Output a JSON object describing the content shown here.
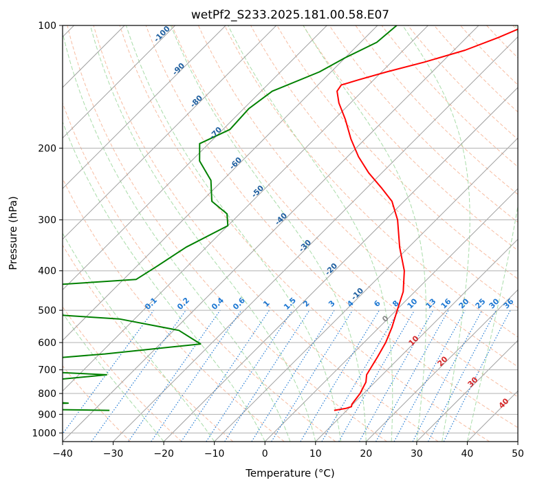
{
  "chart_data": {
    "type": "line",
    "subtype": "skew-T log-P sounding",
    "title": "wetPf2_S233.2025.181.00.58.E07",
    "xlabel": "Temperature (°C)",
    "ylabel": "Pressure (hPa)",
    "xlim": [
      -40,
      50
    ],
    "ylim": [
      1050,
      100
    ],
    "y_scale": "log",
    "x_ticks": [
      -40,
      -30,
      -20,
      -10,
      0,
      10,
      20,
      30,
      40,
      50
    ],
    "x_tick_labels": [
      "−40",
      "−30",
      "−20",
      "−10",
      "0",
      "10",
      "20",
      "30",
      "40",
      "50"
    ],
    "y_ticks": [
      100,
      200,
      300,
      400,
      500,
      600,
      700,
      800,
      900,
      1000
    ],
    "y_tick_labels": [
      "100",
      "200",
      "300",
      "400",
      "500",
      "600",
      "700",
      "800",
      "900",
      "1000"
    ],
    "grid": true,
    "colors": {
      "temperature": "#ff0000",
      "dewpoint": "#008000",
      "isotherm": "#a0a0a0",
      "dry_adiabat": "#f4a582",
      "moist_adiabat": "#9fd89f",
      "mixing_ratio": "#1e78d2",
      "isotherm_label": "#1f5f9f",
      "moist_label": "#d62728",
      "outer_curve": "#c8aa82"
    },
    "series": [
      {
        "key": "temperature",
        "points": [
          {
            "p": 880,
            "t": 7.5
          },
          {
            "p": 870,
            "t": 9.5
          },
          {
            "p": 862,
            "t": 10.2
          },
          {
            "p": 850,
            "t": 9.8
          },
          {
            "p": 800,
            "t": 9.3
          },
          {
            "p": 750,
            "t": 8.2
          },
          {
            "p": 720,
            "t": 6.9
          },
          {
            "p": 650,
            "t": 5.5
          },
          {
            "p": 600,
            "t": 4.3
          },
          {
            "p": 550,
            "t": 2.5
          },
          {
            "p": 500,
            "t": 0.2
          },
          {
            "p": 450,
            "t": -2.3
          },
          {
            "p": 400,
            "t": -6.2
          },
          {
            "p": 350,
            "t": -11.8
          },
          {
            "p": 300,
            "t": -17.6
          },
          {
            "p": 270,
            "t": -22.4
          },
          {
            "p": 250,
            "t": -27.2
          },
          {
            "p": 230,
            "t": -32.6
          },
          {
            "p": 210,
            "t": -37.8
          },
          {
            "p": 190,
            "t": -42.8
          },
          {
            "p": 170,
            "t": -47.8
          },
          {
            "p": 155,
            "t": -52.3
          },
          {
            "p": 145,
            "t": -55.0
          },
          {
            "p": 140,
            "t": -55.4
          },
          {
            "p": 136,
            "t": -53.0
          },
          {
            "p": 130,
            "t": -49.0
          },
          {
            "p": 123,
            "t": -43.5
          },
          {
            "p": 115,
            "t": -37.8
          },
          {
            "p": 107,
            "t": -33.7
          },
          {
            "p": 100,
            "t": -30.5
          }
        ]
      },
      {
        "key": "dewpoint",
        "points": [
          {
            "p": 880,
            "t": -36.9
          },
          {
            "p": 870,
            "t": -65.6
          },
          {
            "p": 862,
            "t": -66.6
          },
          {
            "p": 845,
            "t": -46.5
          },
          {
            "p": 830,
            "t": -56.0
          },
          {
            "p": 800,
            "t": -69.6
          },
          {
            "p": 750,
            "t": -58.0
          },
          {
            "p": 720,
            "t": -44.5
          },
          {
            "p": 700,
            "t": -65.0
          },
          {
            "p": 680,
            "t": -73.0
          },
          {
            "p": 640,
            "t": -49.0
          },
          {
            "p": 605,
            "t": -32.0
          },
          {
            "p": 560,
            "t": -39.0
          },
          {
            "p": 525,
            "t": -53.0
          },
          {
            "p": 510,
            "t": -70.0
          },
          {
            "p": 500,
            "t": -78.0
          },
          {
            "p": 445,
            "t": -99.7
          },
          {
            "p": 435,
            "t": -75.0
          },
          {
            "p": 420,
            "t": -57.5
          },
          {
            "p": 390,
            "t": -56.0
          },
          {
            "p": 350,
            "t": -54.0
          },
          {
            "p": 310,
            "t": -50.0
          },
          {
            "p": 290,
            "t": -52.5
          },
          {
            "p": 270,
            "t": -58.0
          },
          {
            "p": 240,
            "t": -62.3
          },
          {
            "p": 215,
            "t": -68.4
          },
          {
            "p": 195,
            "t": -71.8
          },
          {
            "p": 180,
            "t": -68.6
          },
          {
            "p": 160,
            "t": -69.0
          },
          {
            "p": 145,
            "t": -67.8
          },
          {
            "p": 130,
            "t": -62.3
          },
          {
            "p": 120,
            "t": -60.0
          },
          {
            "p": 110,
            "t": -56.8
          },
          {
            "p": 100,
            "t": -56.2
          }
        ]
      }
    ],
    "isotherm_labels": [
      "-100",
      "-90",
      "-80",
      "-70",
      "-60",
      "-50",
      "-40",
      "-30",
      "-20",
      "-10"
    ],
    "mixing_ratio_labels": [
      "0.1",
      "0.2",
      "0.4",
      "0.6",
      "1",
      "1.5",
      "2",
      "3",
      "4",
      "6",
      "8",
      "10",
      "13",
      "16",
      "20",
      "25",
      "30",
      "36"
    ],
    "moist_labels": [
      "0",
      "10",
      "20",
      "30",
      "40"
    ]
  }
}
